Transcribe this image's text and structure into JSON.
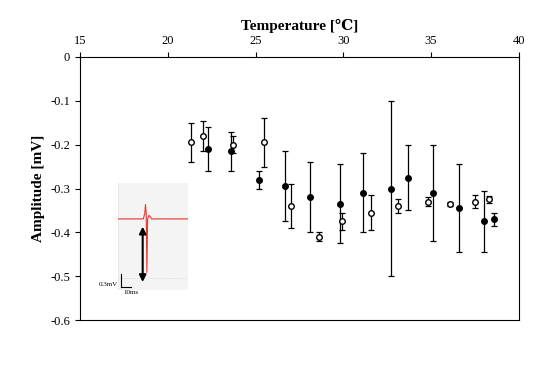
{
  "chart_data": {
    "type": "scatter",
    "x_label": "Temperature [℃]",
    "y_label": "Amplitude [mV]",
    "xlim": [
      15,
      40
    ],
    "xticks": [
      15,
      20,
      25,
      30,
      35,
      40
    ],
    "ylim": [
      -0.6,
      0
    ],
    "yticks": [
      -0.6,
      -0.5,
      -0.4,
      -0.3,
      -0.2,
      -0.1,
      0
    ],
    "grid": false,
    "series": [
      {
        "color": "#000000",
        "marker": "circle",
        "x": [
          22.3,
          23.6,
          25.2,
          26.7,
          28.1,
          29.8,
          31.1,
          32.7,
          33.7,
          35.1,
          36.6,
          38.0,
          38.6
        ],
        "values": [
          -0.21,
          -0.215,
          -0.28,
          -0.295,
          -0.32,
          -0.335,
          -0.31,
          -0.3,
          -0.275,
          -0.31,
          -0.345,
          -0.375,
          -0.37
        ],
        "errors": [
          0.05,
          0.045,
          0.02,
          0.08,
          0.08,
          0.09,
          0.09,
          0.2,
          0.075,
          0.11,
          0.1,
          0.07,
          0.015
        ]
      },
      {
        "color": "#000000",
        "marker": "open_circle",
        "x": [
          21.3,
          22.0,
          23.7,
          25.5,
          27.0,
          28.6,
          29.9,
          31.6,
          33.1,
          34.8,
          36.1,
          37.5,
          38.3
        ],
        "values": [
          -0.195,
          -0.18,
          -0.2,
          -0.195,
          -0.34,
          -0.41,
          -0.375,
          -0.355,
          -0.34,
          -0.33,
          -0.335,
          -0.33,
          -0.325
        ],
        "errors": [
          0.045,
          0.035,
          0.02,
          0.055,
          0.05,
          0.01,
          0.02,
          0.04,
          0.015,
          0.01,
          0.005,
          0.015,
          0.008
        ]
      }
    ],
    "inset": {
      "color": "#e8382f",
      "x": [
        0,
        18,
        19,
        19.5,
        20,
        20.5,
        21,
        22,
        24,
        50
      ],
      "values": [
        0,
        0,
        0.05,
        0.12,
        0.05,
        -0.45,
        0,
        0.03,
        0,
        0
      ],
      "xlim": [
        0,
        50
      ],
      "ylim": [
        -0.6,
        0.3
      ],
      "scale_y_label": "0.3mV",
      "scale_x_label": "10ms"
    }
  }
}
